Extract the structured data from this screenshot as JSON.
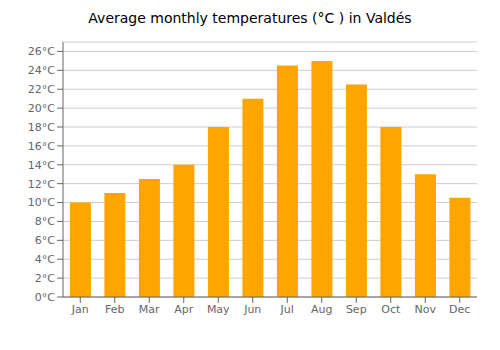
{
  "chart_data": {
    "type": "bar",
    "title": "Average monthly temperatures (°C ) in Valdés",
    "categories": [
      "Jan",
      "Feb",
      "Mar",
      "Apr",
      "May",
      "Jun",
      "Jul",
      "Aug",
      "Sep",
      "Oct",
      "Nov",
      "Dec"
    ],
    "values": [
      10.0,
      11.0,
      12.5,
      14.0,
      18.0,
      21.0,
      24.5,
      25.0,
      22.5,
      18.0,
      13.0,
      10.5
    ],
    "color": "#FFA500",
    "ylim": [
      0,
      27
    ],
    "yticks": [
      {
        "value": 0,
        "label": "0°C"
      },
      {
        "value": 2,
        "label": "2°C"
      },
      {
        "value": 4,
        "label": "4°C"
      },
      {
        "value": 6,
        "label": "6°C"
      },
      {
        "value": 8,
        "label": "8°C"
      },
      {
        "value": 10,
        "label": "10°C"
      },
      {
        "value": 12,
        "label": "12°C"
      },
      {
        "value": 14,
        "label": "14°C"
      },
      {
        "value": 16,
        "label": "16°C"
      },
      {
        "value": 18,
        "label": "18°C"
      },
      {
        "value": 20,
        "label": "20°C"
      },
      {
        "value": 22,
        "label": "22°C"
      },
      {
        "value": 24,
        "label": "24°C"
      },
      {
        "value": 26,
        "label": "26°C"
      }
    ],
    "grid": true
  }
}
